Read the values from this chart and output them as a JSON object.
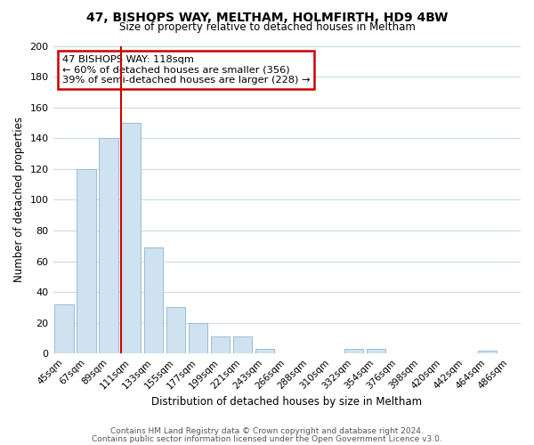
{
  "title": "47, BISHOPS WAY, MELTHAM, HOLMFIRTH, HD9 4BW",
  "subtitle": "Size of property relative to detached houses in Meltham",
  "xlabel": "Distribution of detached houses by size in Meltham",
  "ylabel": "Number of detached properties",
  "bar_labels": [
    "45sqm",
    "67sqm",
    "89sqm",
    "111sqm",
    "133sqm",
    "155sqm",
    "177sqm",
    "199sqm",
    "221sqm",
    "243sqm",
    "266sqm",
    "288sqm",
    "310sqm",
    "332sqm",
    "354sqm",
    "376sqm",
    "398sqm",
    "420sqm",
    "442sqm",
    "464sqm",
    "486sqm"
  ],
  "bar_values": [
    32,
    120,
    140,
    150,
    69,
    30,
    20,
    11,
    11,
    3,
    0,
    0,
    0,
    3,
    3,
    0,
    0,
    0,
    0,
    2,
    0
  ],
  "bar_color": "#cfe2f0",
  "bar_edge_color": "#9bbdd4",
  "highlight_line_color": "#cc0000",
  "annotation_title": "47 BISHOPS WAY: 118sqm",
  "annotation_line1": "← 60% of detached houses are smaller (356)",
  "annotation_line2": "39% of semi-detached houses are larger (228) →",
  "annotation_box_color": "#ffffff",
  "annotation_box_edge": "#cc0000",
  "ylim": [
    0,
    200
  ],
  "yticks": [
    0,
    20,
    40,
    60,
    80,
    100,
    120,
    140,
    160,
    180,
    200
  ],
  "footer_line1": "Contains HM Land Registry data © Crown copyright and database right 2024.",
  "footer_line2": "Contains public sector information licensed under the Open Government Licence v3.0.",
  "bg_color": "#ffffff",
  "grid_color": "#c5ddf0"
}
